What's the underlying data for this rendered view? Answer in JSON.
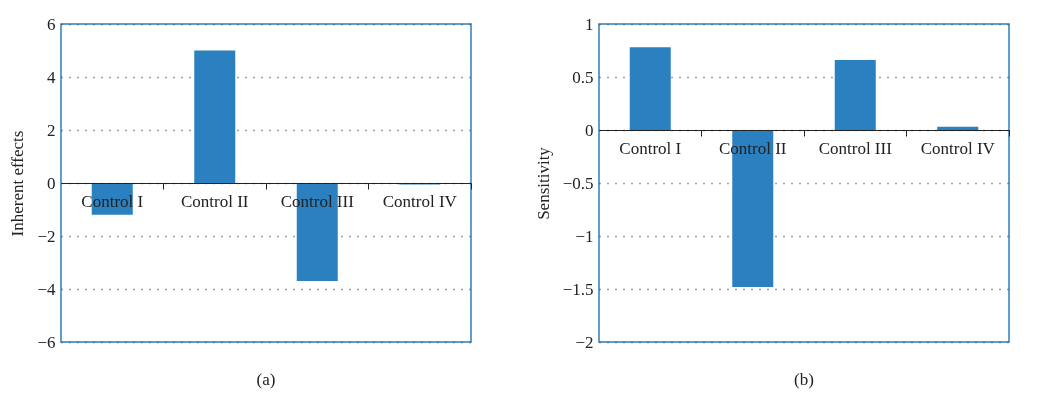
{
  "chart_data": [
    {
      "type": "bar",
      "title": "(a)",
      "ylabel": "Inherent effects",
      "categories": [
        "Control I",
        "Control II",
        "Control III",
        "Control IV"
      ],
      "values": [
        -1.2,
        5.0,
        -3.7,
        -0.06
      ],
      "color": "#2b80c0",
      "ylim": [
        -6,
        6
      ],
      "yticks": [
        -6,
        -4,
        -2,
        0,
        2,
        4,
        6
      ],
      "grid": "y",
      "line_style": "dotted"
    },
    {
      "type": "bar",
      "title": "(b)",
      "ylabel": "Sensitivity",
      "categories": [
        "Control I",
        "Control II",
        "Control III",
        "Control IV"
      ],
      "values": [
        0.78,
        -1.48,
        0.66,
        0.03
      ],
      "color": "#2b80c0",
      "ylim": [
        -2,
        1
      ],
      "yticks": [
        -2,
        -1.5,
        -1,
        -0.5,
        0,
        0.5,
        1
      ],
      "grid": "y",
      "line_style": "dotted"
    }
  ]
}
